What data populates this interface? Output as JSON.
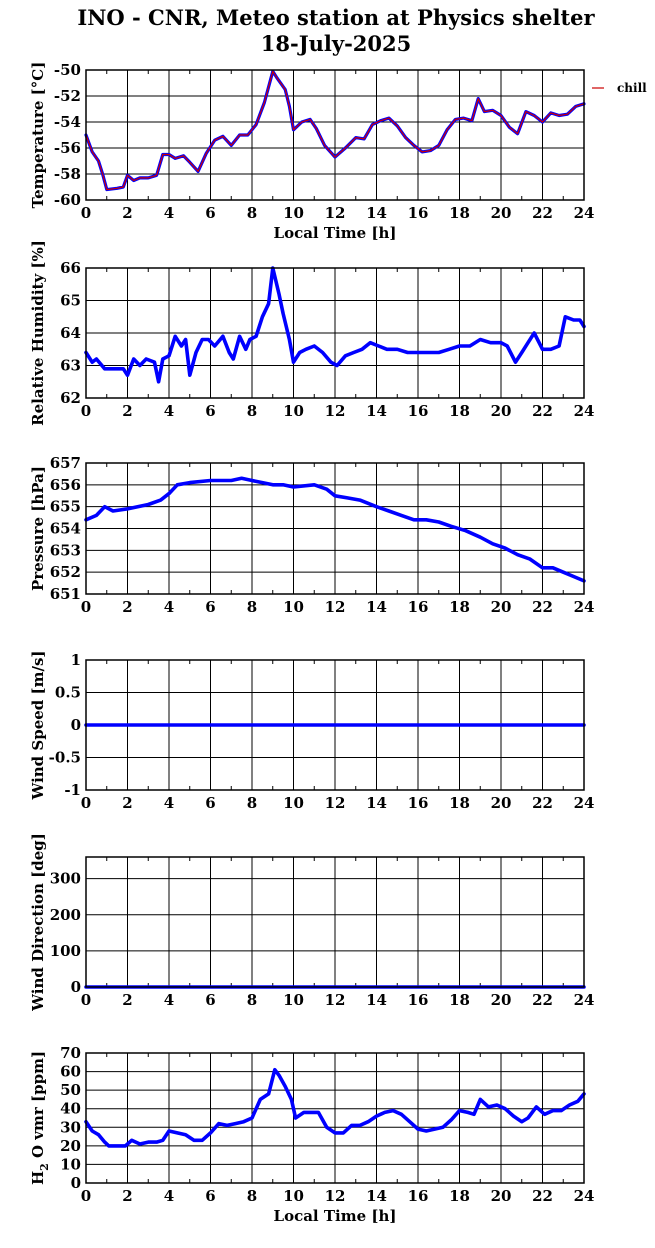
{
  "title_line1": "INO - CNR, Meteo station at Physics shelter",
  "title_line2": "18-July-2025",
  "colors": {
    "series": "#0000ff",
    "chill": "#cc0000",
    "grid": "#000000"
  },
  "chart_data": [
    {
      "type": "line",
      "ylabel": "Temperature [°C]",
      "xlabel": "Local Time [h]",
      "xlim": [
        0,
        24
      ],
      "ylim": [
        -60,
        -50
      ],
      "xticks": [
        0,
        2,
        4,
        6,
        8,
        10,
        12,
        14,
        16,
        18,
        20,
        22,
        24
      ],
      "yticks": [
        -60,
        -58,
        -56,
        -54,
        -52,
        -50
      ],
      "grid": true,
      "legend": {
        "label": "chill",
        "placement": "right-outside"
      },
      "series": [
        {
          "name": "chill",
          "x": [
            0,
            0.3,
            0.6,
            0.8,
            1.0,
            1.5,
            1.8,
            2.0,
            2.3,
            2.6,
            3.0,
            3.4,
            3.7,
            4.0,
            4.3,
            4.7,
            5.0,
            5.4,
            5.8,
            6.2,
            6.6,
            7.0,
            7.4,
            7.8,
            8.2,
            8.6,
            9.0,
            9.2,
            9.6,
            9.8,
            10.0,
            10.4,
            10.8,
            11.1,
            11.5,
            12.0,
            12.5,
            13.0,
            13.4,
            13.8,
            14.2,
            14.6,
            15.0,
            15.4,
            15.8,
            16.2,
            16.6,
            17.0,
            17.4,
            17.8,
            18.2,
            18.6,
            18.9,
            19.2,
            19.6,
            20.0,
            20.4,
            20.8,
            21.2,
            21.6,
            22.0,
            22.4,
            22.8,
            23.2,
            23.6,
            24.0
          ],
          "y": [
            -55,
            -56.3,
            -57,
            -58,
            -59.2,
            -59.1,
            -59,
            -58.1,
            -58.5,
            -58.3,
            -58.3,
            -58.1,
            -56.5,
            -56.5,
            -56.8,
            -56.6,
            -57.1,
            -57.8,
            -56.4,
            -55.4,
            -55.1,
            -55.8,
            -55,
            -55,
            -54.2,
            -52.5,
            -50.1,
            -50.6,
            -51.5,
            -52.8,
            -54.6,
            -54,
            -53.8,
            -54.5,
            -55.8,
            -56.7,
            -56,
            -55.2,
            -55.3,
            -54.2,
            -53.9,
            -53.7,
            -54.3,
            -55.2,
            -55.8,
            -56.3,
            -56.2,
            -55.8,
            -54.6,
            -53.8,
            -53.7,
            -53.9,
            -52.2,
            -53.2,
            -53.1,
            -53.5,
            -54.4,
            -54.9,
            -53.2,
            -53.5,
            -54,
            -53.3,
            -53.5,
            -53.4,
            -52.8,
            -52.6
          ]
        },
        {
          "name": "",
          "x": [
            0,
            0.3,
            0.6,
            0.8,
            1.0,
            1.5,
            1.8,
            2.0,
            2.3,
            2.6,
            3.0,
            3.4,
            3.7,
            4.0,
            4.3,
            4.7,
            5.0,
            5.4,
            5.8,
            6.2,
            6.6,
            7.0,
            7.4,
            7.8,
            8.2,
            8.6,
            9.0,
            9.2,
            9.6,
            9.8,
            10.0,
            10.4,
            10.8,
            11.1,
            11.5,
            12.0,
            12.5,
            13.0,
            13.4,
            13.8,
            14.2,
            14.6,
            15.0,
            15.4,
            15.8,
            16.2,
            16.6,
            17.0,
            17.4,
            17.8,
            18.2,
            18.6,
            18.9,
            19.2,
            19.6,
            20.0,
            20.4,
            20.8,
            21.2,
            21.6,
            22.0,
            22.4,
            22.8,
            23.2,
            23.6,
            24.0
          ],
          "y": [
            -55,
            -56.3,
            -57,
            -58,
            -59.2,
            -59.1,
            -59,
            -58.1,
            -58.5,
            -58.3,
            -58.3,
            -58.1,
            -56.5,
            -56.5,
            -56.8,
            -56.6,
            -57.1,
            -57.8,
            -56.4,
            -55.4,
            -55.1,
            -55.8,
            -55,
            -55,
            -54.2,
            -52.5,
            -50.1,
            -50.6,
            -51.5,
            -52.8,
            -54.6,
            -54,
            -53.8,
            -54.5,
            -55.8,
            -56.7,
            -56,
            -55.2,
            -55.3,
            -54.2,
            -53.9,
            -53.7,
            -54.3,
            -55.2,
            -55.8,
            -56.3,
            -56.2,
            -55.8,
            -54.6,
            -53.8,
            -53.7,
            -53.9,
            -52.2,
            -53.2,
            -53.1,
            -53.5,
            -54.4,
            -54.9,
            -53.2,
            -53.5,
            -54,
            -53.3,
            -53.5,
            -53.4,
            -52.8,
            -52.6
          ]
        }
      ]
    },
    {
      "type": "line",
      "ylabel": "Relative Humidity [%]",
      "xlim": [
        0,
        24
      ],
      "ylim": [
        62,
        66
      ],
      "xticks": [
        0,
        2,
        4,
        6,
        8,
        10,
        12,
        14,
        16,
        18,
        20,
        22,
        24
      ],
      "yticks": [
        62,
        63,
        64,
        65,
        66
      ],
      "grid": true,
      "series": [
        {
          "name": "",
          "x": [
            0,
            0.3,
            0.5,
            0.9,
            1.2,
            1.8,
            2.0,
            2.3,
            2.6,
            2.9,
            3.3,
            3.5,
            3.7,
            4.0,
            4.3,
            4.6,
            4.8,
            5.0,
            5.3,
            5.6,
            5.9,
            6.2,
            6.6,
            6.9,
            7.1,
            7.4,
            7.7,
            7.9,
            8.2,
            8.5,
            8.8,
            9.0,
            9.3,
            9.5,
            9.8,
            10.0,
            10.3,
            10.6,
            11.0,
            11.4,
            11.8,
            12.1,
            12.5,
            12.9,
            13.3,
            13.7,
            14.1,
            14.5,
            15.0,
            15.5,
            16.0,
            16.5,
            17.0,
            17.5,
            18.0,
            18.5,
            19.0,
            19.5,
            20.0,
            20.3,
            20.7,
            21.0,
            21.3,
            21.6,
            22.0,
            22.4,
            22.8,
            23.1,
            23.5,
            23.8,
            24.0
          ],
          "y": [
            63.4,
            63.1,
            63.2,
            62.9,
            62.9,
            62.9,
            62.7,
            63.2,
            63.0,
            63.2,
            63.1,
            62.5,
            63.2,
            63.3,
            63.9,
            63.6,
            63.8,
            62.7,
            63.4,
            63.8,
            63.8,
            63.6,
            63.9,
            63.4,
            63.2,
            63.9,
            63.5,
            63.8,
            63.9,
            64.5,
            64.9,
            66.0,
            65.2,
            64.6,
            63.8,
            63.1,
            63.4,
            63.5,
            63.6,
            63.4,
            63.1,
            63.0,
            63.3,
            63.4,
            63.5,
            63.7,
            63.6,
            63.5,
            63.5,
            63.4,
            63.4,
            63.4,
            63.4,
            63.5,
            63.6,
            63.6,
            63.8,
            63.7,
            63.7,
            63.6,
            63.1,
            63.4,
            63.7,
            64.0,
            63.5,
            63.5,
            63.6,
            64.5,
            64.4,
            64.4,
            64.2
          ]
        }
      ]
    },
    {
      "type": "line",
      "ylabel": "Pressure [hPa]",
      "xlim": [
        0,
        24
      ],
      "ylim": [
        651,
        657
      ],
      "xticks": [
        0,
        2,
        4,
        6,
        8,
        10,
        12,
        14,
        16,
        18,
        20,
        22,
        24
      ],
      "yticks": [
        651,
        652,
        653,
        654,
        655,
        656,
        657
      ],
      "grid": true,
      "series": [
        {
          "name": "",
          "x": [
            0,
            0.5,
            0.9,
            1.3,
            2.0,
            3.0,
            3.6,
            4.0,
            4.4,
            5.0,
            6.0,
            6.5,
            7.0,
            7.5,
            8.0,
            8.5,
            9.0,
            9.5,
            10.0,
            11.0,
            11.6,
            12.0,
            12.6,
            13.2,
            14.0,
            14.6,
            15.2,
            15.8,
            16.4,
            17.0,
            17.6,
            18.3,
            19.0,
            19.6,
            20.2,
            20.8,
            21.4,
            22.0,
            22.5,
            23.0,
            23.5,
            24.0
          ],
          "y": [
            654.4,
            654.6,
            655.0,
            654.8,
            654.9,
            655.1,
            655.3,
            655.6,
            656.0,
            656.1,
            656.2,
            656.2,
            656.2,
            656.3,
            656.2,
            656.1,
            656.0,
            656.0,
            655.9,
            656.0,
            655.8,
            655.5,
            655.4,
            655.3,
            655.0,
            654.8,
            654.6,
            654.4,
            654.4,
            654.3,
            654.1,
            653.9,
            653.6,
            653.3,
            653.1,
            652.8,
            652.6,
            652.2,
            652.2,
            652.0,
            651.8,
            651.6
          ]
        }
      ]
    },
    {
      "type": "line",
      "ylabel": "Wind Speed [m/s]",
      "xlim": [
        0,
        24
      ],
      "ylim": [
        -1,
        1
      ],
      "xticks": [
        0,
        2,
        4,
        6,
        8,
        10,
        12,
        14,
        16,
        18,
        20,
        22,
        24
      ],
      "yticks": [
        -1,
        -0.5,
        0,
        0.5,
        1
      ],
      "grid": true,
      "series": [
        {
          "name": "",
          "x": [
            0,
            24
          ],
          "y": [
            0,
            0
          ]
        }
      ]
    },
    {
      "type": "line",
      "ylabel": "Wind Direction [deg]",
      "xlim": [
        0,
        24
      ],
      "ylim": [
        0,
        360
      ],
      "xticks": [
        0,
        2,
        4,
        6,
        8,
        10,
        12,
        14,
        16,
        18,
        20,
        22,
        24
      ],
      "yticks": [
        0,
        100,
        200,
        300
      ],
      "grid": true,
      "series": [
        {
          "name": "",
          "x": [
            0,
            24
          ],
          "y": [
            0,
            0
          ]
        }
      ]
    },
    {
      "type": "line",
      "ylabel": "H_2 O vmr [ppm]",
      "xlabel": "Local Time [h]",
      "xlim": [
        0,
        24
      ],
      "ylim": [
        0,
        70
      ],
      "xticks": [
        0,
        2,
        4,
        6,
        8,
        10,
        12,
        14,
        16,
        18,
        20,
        22,
        24
      ],
      "yticks": [
        0,
        10,
        20,
        30,
        40,
        50,
        60,
        70
      ],
      "grid": true,
      "series": [
        {
          "name": "",
          "x": [
            0,
            0.3,
            0.6,
            0.9,
            1.1,
            1.5,
            1.9,
            2.2,
            2.6,
            3.0,
            3.4,
            3.7,
            4.0,
            4.4,
            4.8,
            5.2,
            5.6,
            6.0,
            6.4,
            6.8,
            7.2,
            7.6,
            8.0,
            8.4,
            8.8,
            9.1,
            9.3,
            9.6,
            9.9,
            10.1,
            10.5,
            10.9,
            11.2,
            11.6,
            12.0,
            12.4,
            12.8,
            13.2,
            13.6,
            14.0,
            14.4,
            14.8,
            15.2,
            15.6,
            16.0,
            16.4,
            16.8,
            17.2,
            17.6,
            18.0,
            18.4,
            18.7,
            19.0,
            19.4,
            19.8,
            20.2,
            20.6,
            21.0,
            21.3,
            21.7,
            22.1,
            22.5,
            22.9,
            23.3,
            23.7,
            24.0
          ],
          "y": [
            33,
            28,
            26,
            22,
            20,
            20,
            20,
            23,
            21,
            22,
            22,
            23,
            28,
            27,
            26,
            23,
            23,
            27,
            32,
            31,
            32,
            33,
            35,
            45,
            48,
            61,
            58,
            52,
            45,
            35,
            38,
            38,
            38,
            30,
            27,
            27,
            31,
            31,
            33,
            36,
            38,
            39,
            37,
            33,
            29,
            28,
            29,
            30,
            34,
            39,
            38,
            37,
            45,
            41,
            42,
            40,
            36,
            33,
            35,
            41,
            37,
            39,
            39,
            42,
            44,
            48
          ]
        }
      ]
    }
  ]
}
